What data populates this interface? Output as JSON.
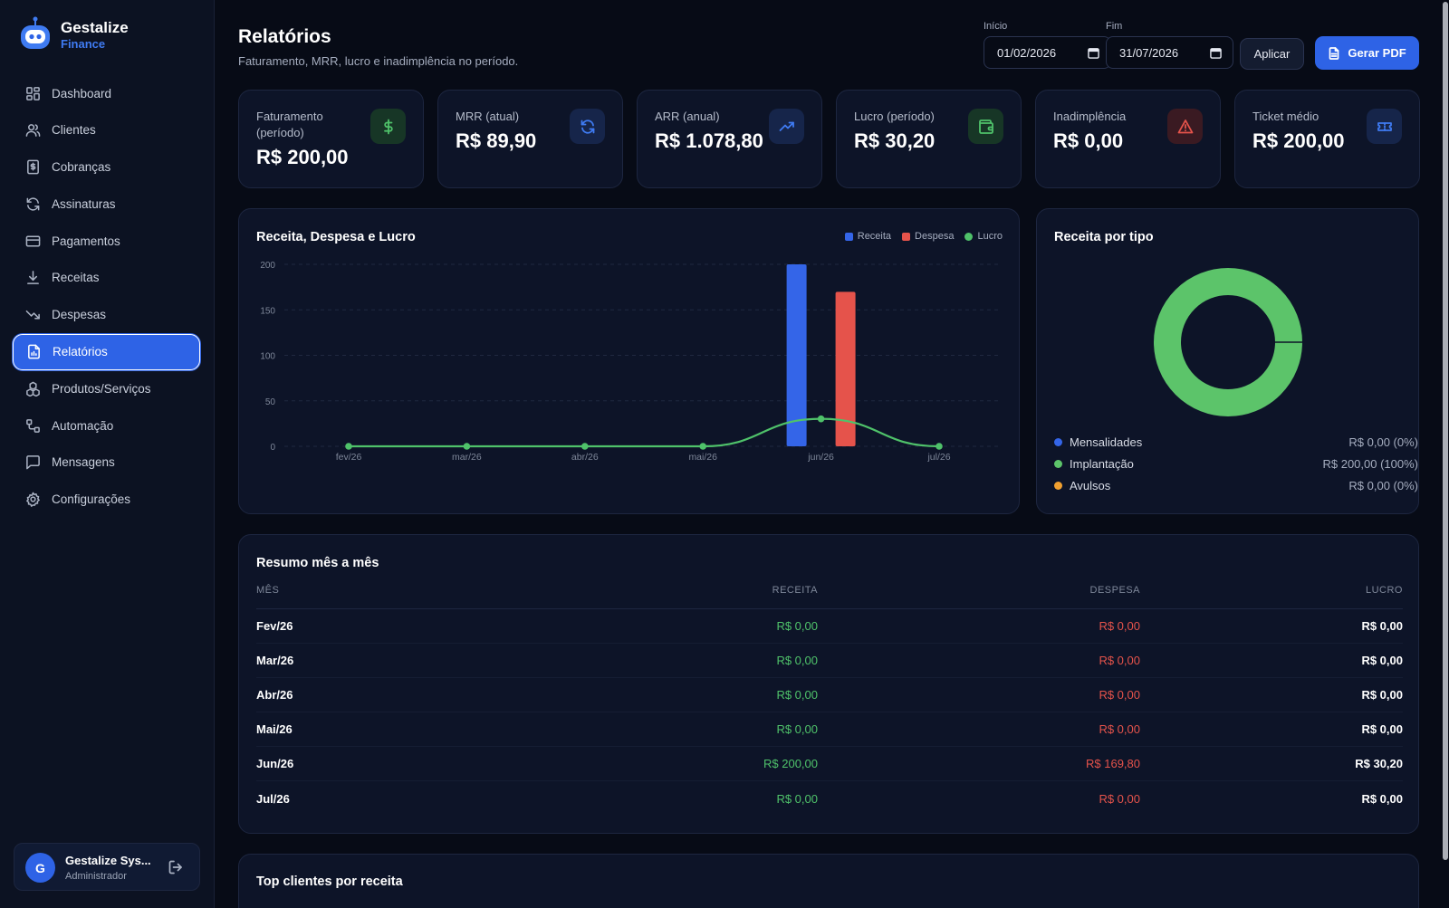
{
  "brand": {
    "name": "Gestalize",
    "sub": "Finance"
  },
  "sidebar": {
    "items": [
      {
        "label": "Dashboard",
        "icon": "dashboard-icon"
      },
      {
        "label": "Clientes",
        "icon": "users-icon"
      },
      {
        "label": "Cobranças",
        "icon": "invoice-icon"
      },
      {
        "label": "Assinaturas",
        "icon": "refresh-icon"
      },
      {
        "label": "Pagamentos",
        "icon": "credit-card-icon"
      },
      {
        "label": "Receitas",
        "icon": "download-icon"
      },
      {
        "label": "Despesas",
        "icon": "trending-down-icon"
      },
      {
        "label": "Relatórios",
        "icon": "report-icon",
        "active": true
      },
      {
        "label": "Produtos/Serviços",
        "icon": "boxes-icon"
      },
      {
        "label": "Automação",
        "icon": "workflow-icon"
      },
      {
        "label": "Mensagens",
        "icon": "message-icon"
      },
      {
        "label": "Configurações",
        "icon": "gear-icon"
      }
    ],
    "user": {
      "initial": "G",
      "name": "Gestalize Sys...",
      "role": "Administrador"
    }
  },
  "header": {
    "title": "Relatórios",
    "subtitle": "Faturamento, MRR, lucro e inadimplência no período.",
    "start_label": "Início",
    "start_value": "01/02/2026",
    "end_label": "Fim",
    "end_value": "31/07/2026",
    "apply_label": "Aplicar",
    "pdf_label": "Gerar PDF"
  },
  "kpis": [
    {
      "label": "Faturamento (período)",
      "value": "R$ 200,00",
      "icon": "dollar-icon",
      "color": "#4fc26a"
    },
    {
      "label": "MRR (atual)",
      "value": "R$ 89,90",
      "icon": "refresh-icon",
      "color": "#3f7bf2"
    },
    {
      "label": "ARR (anual)",
      "value": "R$ 1.078,80",
      "icon": "trending-up-icon",
      "color": "#3f7bf2"
    },
    {
      "label": "Lucro (período)",
      "value": "R$ 30,20",
      "icon": "wallet-icon",
      "color": "#4fc26a"
    },
    {
      "label": "Inadimplência",
      "value": "R$ 0,00",
      "icon": "alert-triangle-icon",
      "color": "#e5534b"
    },
    {
      "label": "Ticket médio",
      "value": "R$ 200,00",
      "icon": "ticket-icon",
      "color": "#3f7bf2"
    }
  ],
  "chart_data": [
    {
      "type": "bar",
      "title": "Receita, Despesa e Lucro",
      "categories": [
        "fev/26",
        "mar/26",
        "abr/26",
        "mai/26",
        "jun/26",
        "jul/26"
      ],
      "series": [
        {
          "name": "Receita",
          "type": "bar",
          "color": "#3465e8",
          "values": [
            0,
            0,
            0,
            0,
            200,
            0
          ]
        },
        {
          "name": "Despesa",
          "type": "bar",
          "color": "#e5534b",
          "values": [
            0,
            0,
            0,
            0,
            169.8,
            0
          ]
        },
        {
          "name": "Lucro",
          "type": "line",
          "color": "#4fc26a",
          "values": [
            0,
            0,
            0,
            0,
            30.2,
            0
          ]
        }
      ],
      "yticks": [
        "200",
        "150",
        "100",
        "50",
        "0"
      ],
      "ylim": [
        0,
        200
      ],
      "grid": true,
      "legend": "top-right"
    },
    {
      "type": "pie",
      "title": "Receita por tipo",
      "slices": [
        {
          "name": "Mensalidades",
          "value": 0,
          "display": "R$ 0,00 (0%)",
          "color": "#3465e8"
        },
        {
          "name": "Implantação",
          "value": 200,
          "display": "R$ 200,00 (100%)",
          "color": "#5cc46a"
        },
        {
          "name": "Avulsos",
          "value": 0,
          "display": "R$ 0,00 (0%)",
          "color": "#f0a030"
        }
      ]
    }
  ],
  "summary": {
    "title": "Resumo mês a mês",
    "headers": [
      "MÊS",
      "RECEITA",
      "DESPESA",
      "LUCRO"
    ],
    "rows": [
      [
        "Fev/26",
        "R$ 0,00",
        "R$ 0,00",
        "R$ 0,00"
      ],
      [
        "Mar/26",
        "R$ 0,00",
        "R$ 0,00",
        "R$ 0,00"
      ],
      [
        "Abr/26",
        "R$ 0,00",
        "R$ 0,00",
        "R$ 0,00"
      ],
      [
        "Mai/26",
        "R$ 0,00",
        "R$ 0,00",
        "R$ 0,00"
      ],
      [
        "Jun/26",
        "R$ 200,00",
        "R$ 169,80",
        "R$ 30,20"
      ],
      [
        "Jul/26",
        "R$ 0,00",
        "R$ 0,00",
        "R$ 0,00"
      ]
    ]
  },
  "top_clients": {
    "title": "Top clientes por receita"
  }
}
